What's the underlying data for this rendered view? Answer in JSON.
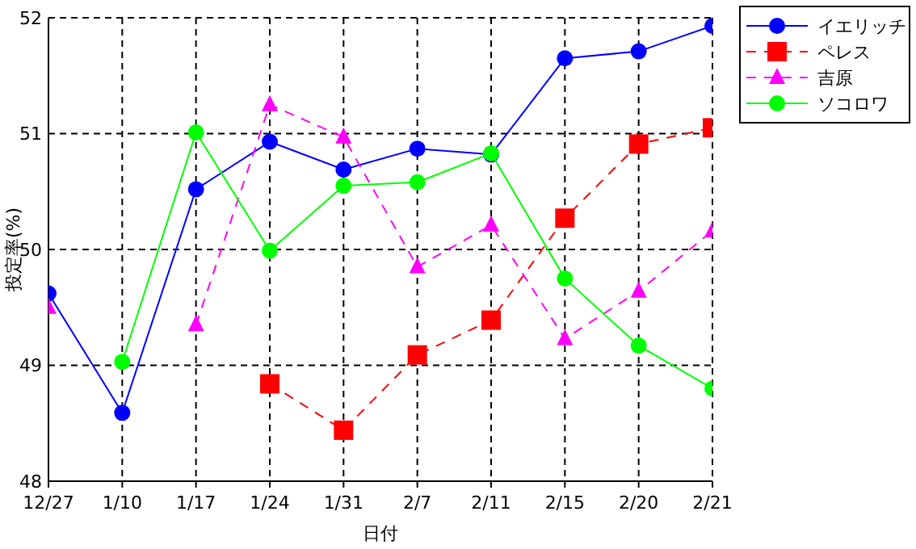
{
  "chart_data": {
    "type": "line",
    "xlabel": "日付",
    "ylabel": "投定率(%)",
    "categories": [
      "12/27",
      "1/10",
      "1/17",
      "1/24",
      "1/31",
      "2/7",
      "2/11",
      "2/15",
      "2/20",
      "2/21"
    ],
    "ylim": [
      48,
      52
    ],
    "yticks": [
      48,
      49,
      50,
      51,
      52
    ],
    "grid": true,
    "legend": "top right",
    "series": [
      {
        "name": "イエリッチ",
        "color": "#0000ff",
        "marker": "circle",
        "line_style": "solid",
        "values": [
          49.62,
          48.59,
          50.52,
          50.93,
          50.69,
          50.87,
          50.82,
          51.65,
          51.71,
          51.93
        ]
      },
      {
        "name": "ペレス",
        "color": "#ff0000",
        "marker": "square",
        "line_style": "dashed",
        "values": [
          null,
          null,
          null,
          48.84,
          48.44,
          49.09,
          49.39,
          50.27,
          50.91,
          51.05
        ]
      },
      {
        "name": "吉原",
        "color": "#ff00ff",
        "marker": "triangle",
        "line_style": "dashed",
        "values": [
          49.5,
          null,
          49.35,
          51.25,
          50.97,
          49.85,
          50.21,
          49.23,
          49.64,
          50.16
        ]
      },
      {
        "name": "ソコロワ",
        "color": "#00ff00",
        "marker": "circle",
        "line_style": "solid",
        "values": [
          null,
          49.03,
          51.01,
          49.99,
          50.55,
          50.58,
          50.83,
          49.75,
          49.17,
          48.8
        ]
      }
    ]
  }
}
